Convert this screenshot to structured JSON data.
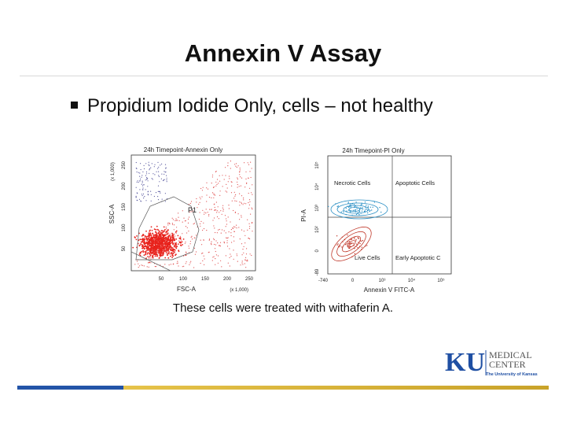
{
  "slide": {
    "title": "Annexin V Assay",
    "bullet": "Propidium Iodide Only, cells – not healthy",
    "caption": "These cells were treated with withaferin A."
  },
  "plot_left": {
    "title": "24h Timepoint-Annexin Only",
    "xlabel": "FSC-A",
    "ylabel": "SSC-A",
    "gate": "P1",
    "x_ticks": [
      "50",
      "100",
      "150",
      "200",
      "250"
    ],
    "x_unit": "(x 1,000)",
    "y_ticks": [
      "50",
      "100",
      "150",
      "200",
      "250"
    ],
    "y_unit": "(x 1,000)",
    "dot_color": "#e8231d"
  },
  "plot_right": {
    "title": "24h Timepoint-PI Only",
    "xlabel": "Annexin V FITC-A",
    "ylabel": "PI-A",
    "quadrants": {
      "top_left": "Necrotic Cells",
      "top_right": "Apoptotic Cells",
      "bottom_left": "Live Cells",
      "bottom_right": "Early Apoptotic C"
    },
    "x_ticks": [
      "-740",
      "0",
      "10³",
      "10⁴",
      "10⁵"
    ],
    "y_ticks": [
      "-89",
      "0",
      "10²",
      "10³",
      "10⁴",
      "10⁵"
    ],
    "upper_contour_color": "#2a8fc4",
    "lower_contour_color": "#c0392b"
  },
  "logo": {
    "mark": "KU",
    "line1": "MEDICAL",
    "line2": "CENTER",
    "line3": "The University of Kansas",
    "mark_color": "#1f4fa3"
  }
}
